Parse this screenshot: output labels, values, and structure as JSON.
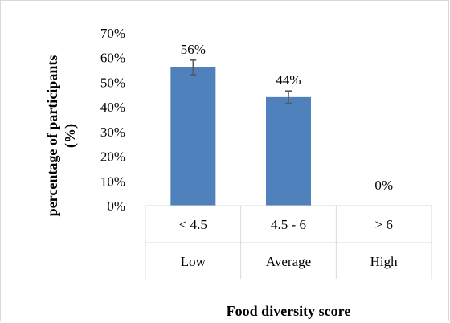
{
  "chart_data": {
    "type": "bar",
    "categories": [
      "< 4.5",
      "4.5 - 6",
      "> 6"
    ],
    "category_groups": [
      "Low",
      "Average",
      "High"
    ],
    "values": [
      56,
      44,
      0
    ],
    "data_labels": [
      "56%",
      "44%",
      "0%"
    ],
    "error_bars": [
      3,
      2.5,
      0
    ],
    "y_ticks": [
      "0%",
      "10%",
      "20%",
      "30%",
      "40%",
      "50%",
      "60%",
      "70%"
    ],
    "ylim": [
      0,
      70
    ],
    "ylabel_line1": "percentage of participants",
    "ylabel_line2": "(%)",
    "xlabel": "Food diversity score",
    "bar_color": "#4f81bd",
    "error_color": "#595959",
    "grid": false,
    "legend": "none"
  }
}
